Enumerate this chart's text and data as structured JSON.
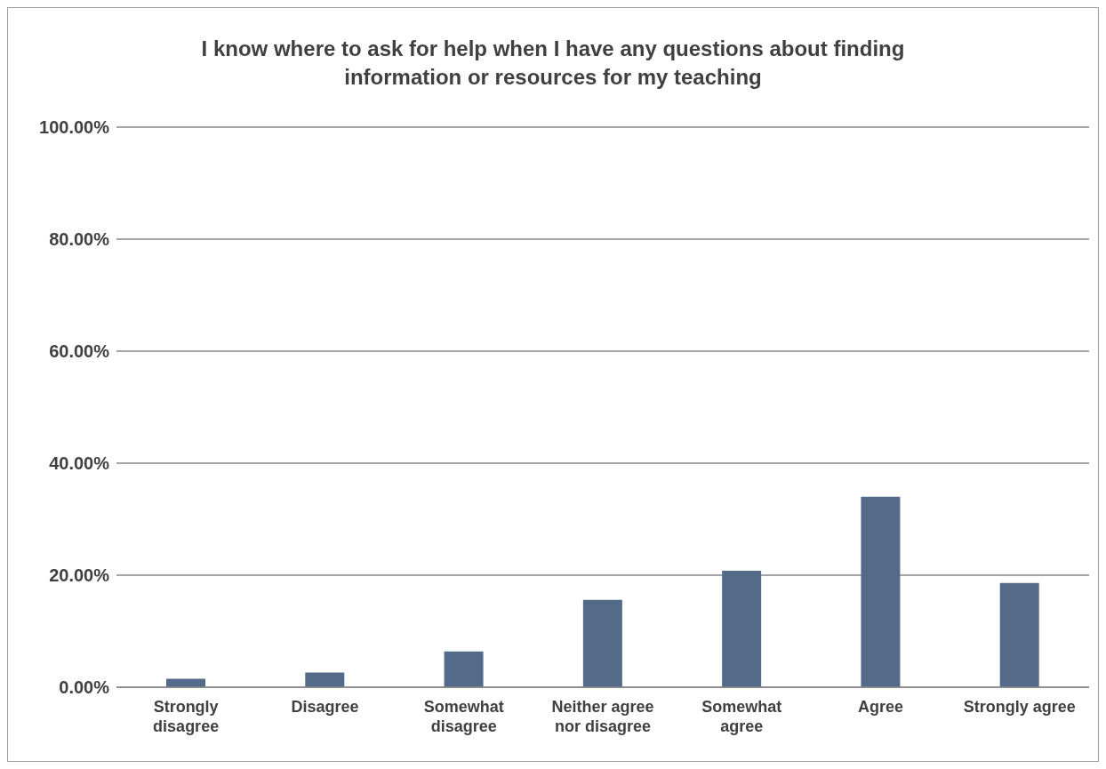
{
  "chart_data": {
    "type": "bar",
    "title": "I know where to ask for help when I have any questions about finding information or resources for my teaching",
    "categories": [
      "Strongly disagree",
      "Disagree",
      "Somewhat disagree",
      "Neither agree nor disagree",
      "Somewhat agree",
      "Agree",
      "Strongly agree"
    ],
    "values": [
      1.5,
      2.6,
      6.4,
      15.6,
      20.8,
      34.0,
      18.6
    ],
    "color": "#536b88",
    "ylim": [
      0,
      100
    ],
    "yticks": [
      {
        "value": 0,
        "label": "0.00%"
      },
      {
        "value": 20,
        "label": "20.00%"
      },
      {
        "value": 40,
        "label": "40.00%"
      },
      {
        "value": 60,
        "label": "60.00%"
      },
      {
        "value": 80,
        "label": "80.00%"
      },
      {
        "value": 100,
        "label": "100.00%"
      }
    ],
    "grid": "y",
    "legend": false
  }
}
